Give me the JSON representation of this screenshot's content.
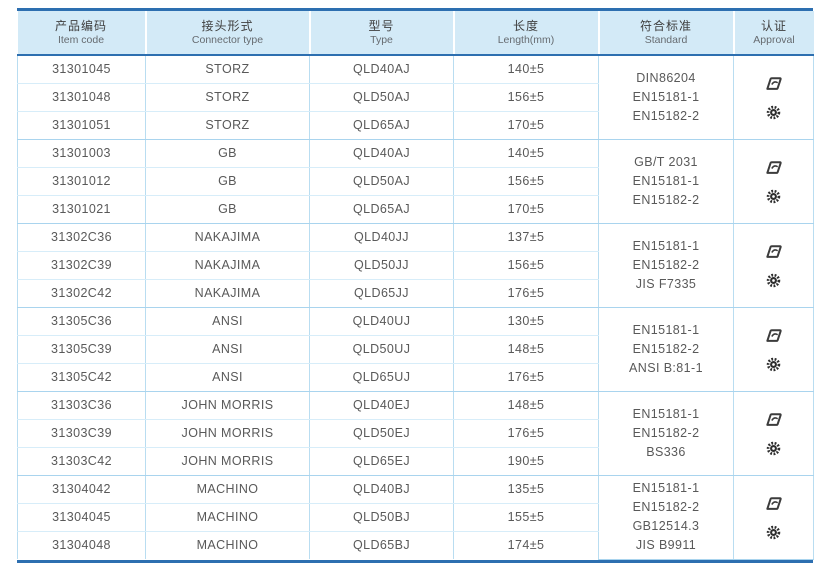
{
  "table": {
    "accent_color": "#2d6fb0",
    "header_bg": "#d3eaf7",
    "grid_color": "#b9ddf1",
    "text_color": "#595959",
    "columns": [
      {
        "zh": "产品编码",
        "en": "Item code"
      },
      {
        "zh": "接头形式",
        "en": "Connector type"
      },
      {
        "zh": "型号",
        "en": "Type"
      },
      {
        "zh": "长度",
        "en": "Length(mm)"
      },
      {
        "zh": "符合标准",
        "en": "Standard"
      },
      {
        "zh": "认证",
        "en": "Approval"
      }
    ],
    "approval_icon_names": [
      "type-approval-logo-icon",
      "wheelmark-gear-icon"
    ],
    "groups": [
      {
        "rows": [
          {
            "code": "31301045",
            "connector": "STORZ",
            "type": "QLD40AJ",
            "length": "140±5"
          },
          {
            "code": "31301048",
            "connector": "STORZ",
            "type": "QLD50AJ",
            "length": "156±5"
          },
          {
            "code": "31301051",
            "connector": "STORZ",
            "type": "QLD65AJ",
            "length": "170±5"
          }
        ],
        "standards": [
          "DIN86204",
          "EN15181-1",
          "EN15182-2"
        ]
      },
      {
        "rows": [
          {
            "code": "31301003",
            "connector": "GB",
            "type": "QLD40AJ",
            "length": "140±5"
          },
          {
            "code": "31301012",
            "connector": "GB",
            "type": "QLD50AJ",
            "length": "156±5"
          },
          {
            "code": "31301021",
            "connector": "GB",
            "type": "QLD65AJ",
            "length": "170±5"
          }
        ],
        "standards": [
          "GB/T 2031",
          "EN15181-1",
          "EN15182-2"
        ]
      },
      {
        "rows": [
          {
            "code": "31302C36",
            "connector": "NAKAJIMA",
            "type": "QLD40JJ",
            "length": "137±5"
          },
          {
            "code": "31302C39",
            "connector": "NAKAJIMA",
            "type": "QLD50JJ",
            "length": "156±5"
          },
          {
            "code": "31302C42",
            "connector": "NAKAJIMA",
            "type": "QLD65JJ",
            "length": "176±5"
          }
        ],
        "standards": [
          "EN15181-1",
          "EN15182-2",
          "JIS F7335"
        ]
      },
      {
        "rows": [
          {
            "code": "31305C36",
            "connector": "ANSI",
            "type": "QLD40UJ",
            "length": "130±5"
          },
          {
            "code": "31305C39",
            "connector": "ANSI",
            "type": "QLD50UJ",
            "length": "148±5"
          },
          {
            "code": "31305C42",
            "connector": "ANSI",
            "type": "QLD65UJ",
            "length": "176±5"
          }
        ],
        "standards": [
          "EN15181-1",
          "EN15182-2",
          "ANSI B:81-1"
        ]
      },
      {
        "rows": [
          {
            "code": "31303C36",
            "connector": "JOHN MORRIS",
            "type": "QLD40EJ",
            "length": "148±5"
          },
          {
            "code": "31303C39",
            "connector": "JOHN MORRIS",
            "type": "QLD50EJ",
            "length": "176±5"
          },
          {
            "code": "31303C42",
            "connector": "JOHN MORRIS",
            "type": "QLD65EJ",
            "length": "190±5"
          }
        ],
        "standards": [
          "EN15181-1",
          "EN15182-2",
          "BS336"
        ]
      },
      {
        "rows": [
          {
            "code": "31304042",
            "connector": "MACHINO",
            "type": "QLD40BJ",
            "length": "135±5"
          },
          {
            "code": "31304045",
            "connector": "MACHINO",
            "type": "QLD50BJ",
            "length": "155±5"
          },
          {
            "code": "31304048",
            "connector": "MACHINO",
            "type": "QLD65BJ",
            "length": "174±5"
          }
        ],
        "standards": [
          "EN15181-1",
          "EN15182-2",
          "GB12514.3",
          "JIS B9911"
        ]
      }
    ]
  }
}
